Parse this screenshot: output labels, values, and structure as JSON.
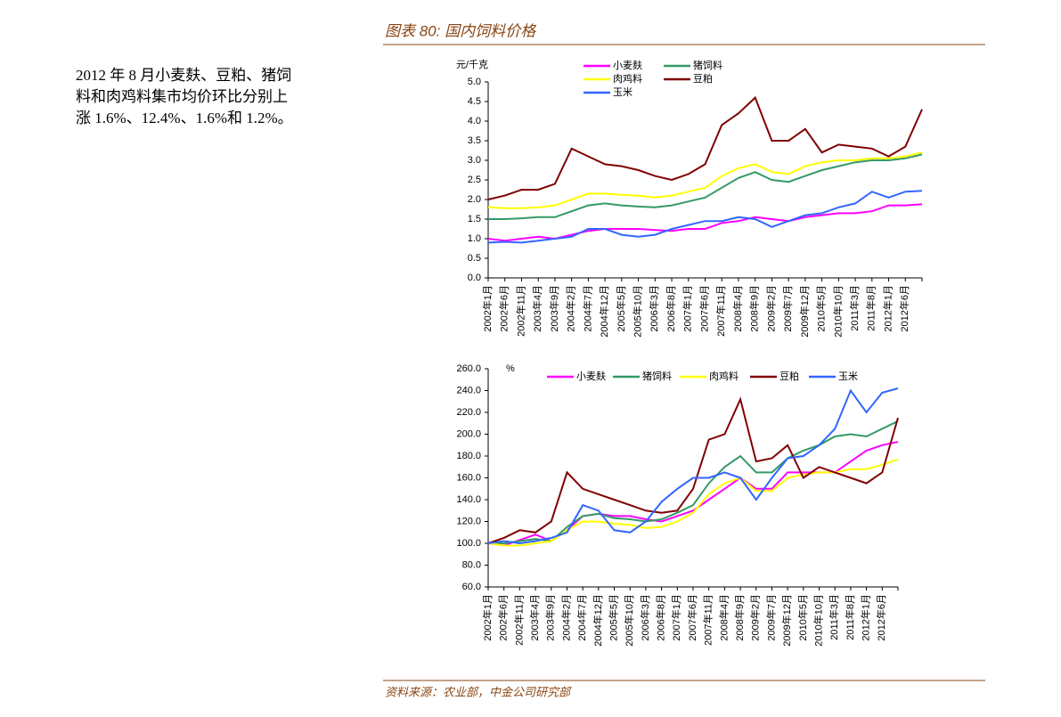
{
  "header": {
    "title": "图表 80:  国内饲料价格"
  },
  "body": {
    "lines": [
      "2012 年 8 月小麦麸、豆粕、猪饲",
      "料和肉鸡料集市均价环比分别上",
      "涨 1.6%、12.4%、1.6%和 1.2%。"
    ]
  },
  "source": "资料来源：农业部，中金公司研究部",
  "chart_data": [
    {
      "type": "line",
      "y_label": "元/千克",
      "legend": "top",
      "categories": [
        "2002年1月",
        "2002年6月",
        "2002年11月",
        "2003年4月",
        "2003年9月",
        "2004年2月",
        "2004年7月",
        "2004年12月",
        "2005年5月",
        "2005年10月",
        "2006年3月",
        "2006年8月",
        "2007年1月",
        "2007年6月",
        "2007年11月",
        "2008年4月",
        "2008年9月",
        "2009年2月",
        "2009年7月",
        "2009年12月",
        "2010年5月",
        "2010年10月",
        "2011年3月",
        "2011年8月",
        "2012年1月",
        "2012年6月",
        null
      ],
      "ylim": [
        0,
        5
      ],
      "yticks": [
        {
          "value": 0,
          "label": "0.0"
        },
        0.5,
        {
          "value": 1,
          "label": "1.0"
        },
        1.5,
        {
          "value": 2,
          "label": "2.0"
        },
        2.5,
        {
          "value": 3,
          "label": "3.0"
        },
        3.5,
        {
          "value": 4,
          "label": "4.0"
        },
        4.5,
        {
          "value": 5,
          "label": "5.0"
        }
      ],
      "series": [
        {
          "name": "小麦麸",
          "color": "#ff00ff",
          "values": [
            1.0,
            0.95,
            1.0,
            1.05,
            1.0,
            1.1,
            1.2,
            1.25,
            1.25,
            1.25,
            1.22,
            1.2,
            1.25,
            1.25,
            1.4,
            1.45,
            1.55,
            1.5,
            1.45,
            1.55,
            1.6,
            1.65,
            1.65,
            1.7,
            1.85,
            1.85,
            1.88
          ]
        },
        {
          "name": "猪饲料",
          "color": "#339966",
          "values": [
            1.5,
            1.5,
            1.52,
            1.55,
            1.55,
            1.7,
            1.85,
            1.9,
            1.85,
            1.82,
            1.8,
            1.85,
            1.95,
            2.05,
            2.3,
            2.55,
            2.7,
            2.5,
            2.45,
            2.6,
            2.75,
            2.85,
            2.95,
            3.0,
            3.0,
            3.05,
            3.15
          ]
        },
        {
          "name": "肉鸡料",
          "color": "#ffff00",
          "values": [
            1.8,
            1.78,
            1.78,
            1.8,
            1.85,
            2.0,
            2.15,
            2.15,
            2.12,
            2.1,
            2.05,
            2.1,
            2.2,
            2.3,
            2.6,
            2.8,
            2.9,
            2.7,
            2.65,
            2.85,
            2.95,
            3.0,
            3.0,
            3.05,
            3.05,
            3.1,
            3.2
          ]
        },
        {
          "name": "豆粕",
          "color": "#800000",
          "values": [
            2.0,
            2.1,
            2.25,
            2.25,
            2.4,
            3.3,
            3.1,
            2.9,
            2.85,
            2.75,
            2.6,
            2.5,
            2.65,
            2.9,
            3.9,
            4.2,
            4.6,
            3.5,
            3.5,
            3.8,
            3.2,
            3.4,
            3.35,
            3.3,
            3.1,
            3.35,
            4.3
          ]
        },
        {
          "name": "玉米",
          "color": "#3366ff",
          "values": [
            0.9,
            0.92,
            0.9,
            0.95,
            1.0,
            1.05,
            1.25,
            1.25,
            1.1,
            1.05,
            1.1,
            1.25,
            1.35,
            1.45,
            1.45,
            1.55,
            1.5,
            1.3,
            1.45,
            1.6,
            1.65,
            1.8,
            1.9,
            2.2,
            2.05,
            2.2,
            2.22
          ]
        }
      ]
    },
    {
      "type": "line",
      "y_label": "%",
      "legend": "top",
      "categories": [
        "2002年1月",
        "2002年6月",
        "2002年11月",
        "2003年4月",
        "2003年9月",
        "2004年2月",
        "2004年7月",
        "2004年12月",
        "2005年5月",
        "2005年10月",
        "2006年3月",
        "2006年8月",
        "2007年1月",
        "2007年6月",
        "2007年11月",
        "2008年4月",
        "2008年9月",
        "2009年2月",
        "2009年7月",
        "2009年12月",
        "2010年5月",
        "2010年10月",
        "2011年3月",
        "2011年8月",
        "2012年1月",
        "2012年6月",
        null
      ],
      "ylim": [
        60,
        260
      ],
      "yticks": [
        {
          "value": 60,
          "label": "60.0"
        },
        {
          "value": 80,
          "label": "80.0"
        },
        {
          "value": 100,
          "label": "100.0"
        },
        {
          "value": 120,
          "label": "120.0"
        },
        {
          "value": 140,
          "label": "140.0"
        },
        {
          "value": 160,
          "label": "160.0"
        },
        {
          "value": 180,
          "label": "180.0"
        },
        {
          "value": 200,
          "label": "200.0"
        },
        {
          "value": 220,
          "label": "220.0"
        },
        {
          "value": 240,
          "label": "240.0"
        },
        {
          "value": 260,
          "label": "260.0"
        }
      ],
      "series": [
        {
          "name": "小麦麸",
          "color": "#ff00ff",
          "values": [
            100,
            98,
            103,
            108,
            102,
            112,
            125,
            127,
            125,
            125,
            122,
            120,
            125,
            130,
            140,
            150,
            160,
            150,
            150,
            165,
            165,
            165,
            165,
            175,
            185,
            190,
            193
          ]
        },
        {
          "name": "猪饲料",
          "color": "#339966",
          "values": [
            100,
            100,
            102,
            104,
            102,
            115,
            125,
            127,
            123,
            122,
            120,
            122,
            128,
            135,
            155,
            170,
            180,
            165,
            165,
            178,
            185,
            190,
            198,
            200,
            198,
            205,
            212
          ]
        },
        {
          "name": "肉鸡料",
          "color": "#ffff00",
          "values": [
            100,
            98,
            98,
            100,
            102,
            112,
            120,
            120,
            118,
            117,
            114,
            115,
            120,
            128,
            145,
            155,
            160,
            148,
            148,
            160,
            163,
            165,
            165,
            168,
            168,
            172,
            177
          ]
        },
        {
          "name": "豆粕",
          "color": "#800000",
          "values": [
            100,
            105,
            112,
            110,
            120,
            165,
            150,
            145,
            140,
            135,
            130,
            128,
            130,
            150,
            195,
            200,
            232,
            175,
            178,
            190,
            160,
            170,
            165,
            160,
            155,
            165,
            215
          ]
        },
        {
          "name": "玉米",
          "color": "#3366ff",
          "values": [
            100,
            102,
            100,
            102,
            105,
            110,
            135,
            130,
            112,
            110,
            120,
            138,
            150,
            160,
            160,
            165,
            160,
            140,
            160,
            178,
            180,
            190,
            205,
            240,
            220,
            238,
            242
          ]
        }
      ]
    }
  ]
}
